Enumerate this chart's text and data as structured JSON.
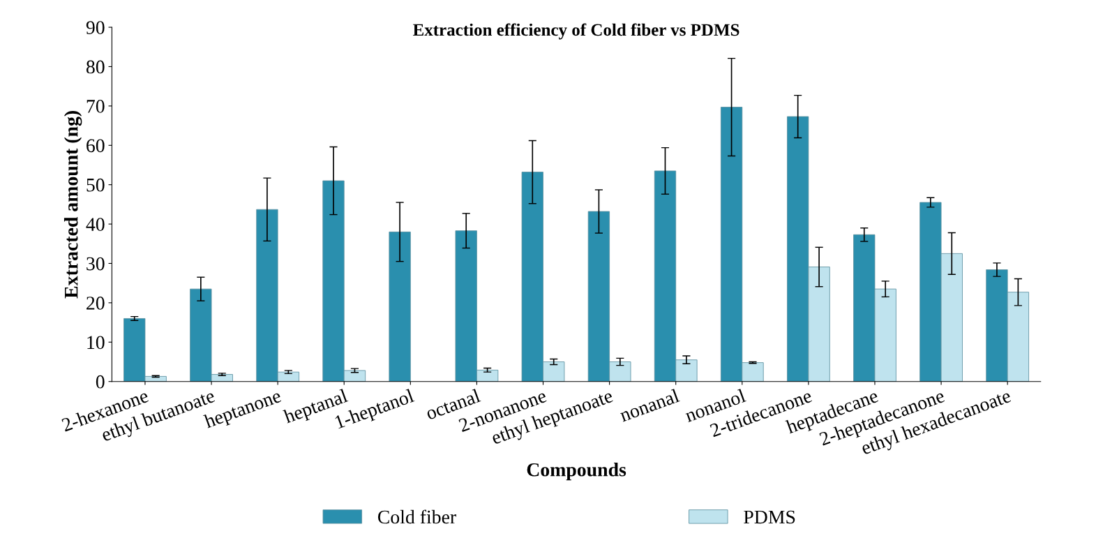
{
  "chart_data": {
    "type": "bar",
    "title": "Extraction efficiency of Cold fiber vs PDMS",
    "xlabel": "Compounds",
    "ylabel": "Extracted amount (ng)",
    "categories": [
      "2-hexanone",
      "ethyl butanoate",
      "heptanone",
      "heptanal",
      "1-heptanol",
      "octanal",
      "2-nonanone",
      "ethyl heptanoate",
      "nonanal",
      "nonanol",
      "2-tridecanone",
      "heptadecane",
      "2-heptadecanone",
      "ethyl hexadecanoate"
    ],
    "series": [
      {
        "name": "Cold fiber",
        "color": "#2a8fae",
        "values": [
          16,
          23.5,
          43.7,
          51,
          38,
          38.3,
          53.2,
          43.2,
          53.5,
          69.7,
          67.3,
          37.3,
          45.5,
          28.4
        ],
        "errors": [
          0.5,
          3,
          8,
          8.6,
          7.5,
          4.4,
          8,
          5.5,
          5.9,
          12.4,
          5.4,
          1.7,
          1.2,
          1.7
        ]
      },
      {
        "name": "PDMS",
        "color": "#bfe3ee",
        "values": [
          1.3,
          1.8,
          2.4,
          2.8,
          null,
          2.9,
          5,
          5,
          5.5,
          4.8,
          29.1,
          23.5,
          32.5,
          22.7
        ],
        "errors": [
          0.2,
          0.3,
          0.4,
          0.5,
          null,
          0.5,
          0.7,
          0.9,
          1,
          0.2,
          5,
          2,
          5.3,
          3.4
        ]
      }
    ],
    "ylim": [
      0,
      90
    ],
    "yticks": [
      0,
      10,
      20,
      30,
      40,
      50,
      60,
      70,
      80,
      90
    ],
    "grid": false,
    "legend": "bottom"
  }
}
